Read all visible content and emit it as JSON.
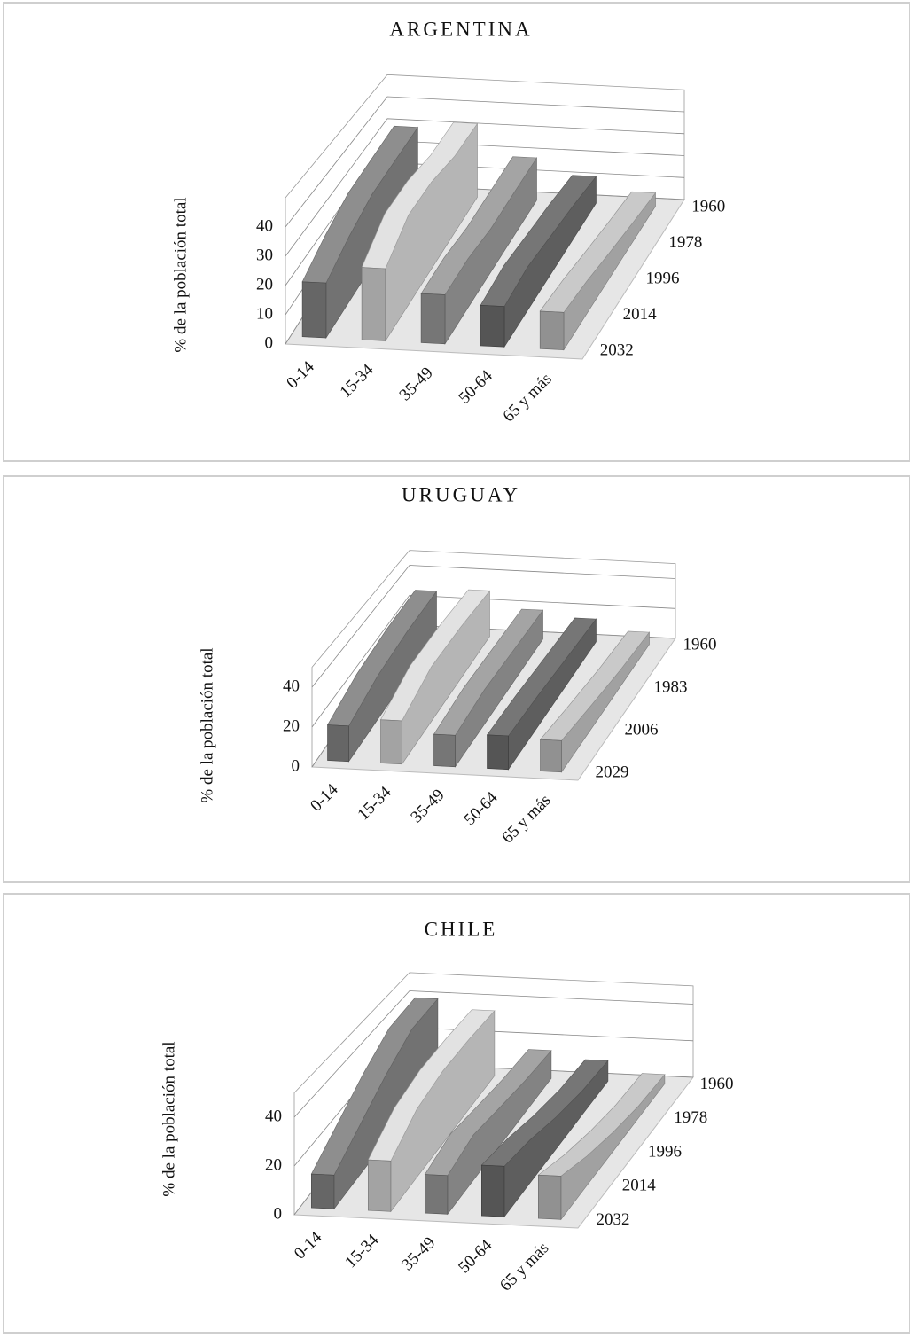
{
  "chart_data": [
    {
      "type": "ribbon3d",
      "title": "ARGENTINA",
      "y_label": "% de la población total",
      "categories": [
        "0-14",
        "15-34",
        "35-49",
        "50-64",
        "65 y más"
      ],
      "x": [
        "1960",
        "1978",
        "1996",
        "2014",
        "2032"
      ],
      "ylim": [
        0,
        50
      ],
      "yticks": [
        0,
        10,
        20,
        30,
        40
      ],
      "grid": true,
      "series": [
        {
          "name": "0-14",
          "color": "#8e8e8e",
          "values": [
            30,
            29,
            28,
            24,
            19
          ]
        },
        {
          "name": "15-34",
          "color": "#e2e2e2",
          "values": [
            33,
            32,
            34,
            33,
            25
          ]
        },
        {
          "name": "35-49",
          "color": "#a4a4a4",
          "values": [
            19,
            18,
            17,
            18,
            17
          ]
        },
        {
          "name": "50-64",
          "color": "#767676",
          "values": [
            12,
            14,
            15,
            16,
            14
          ]
        },
        {
          "name": "65 y más",
          "color": "#c9c9c9",
          "values": [
            6,
            8,
            10,
            12,
            13
          ]
        }
      ]
    },
    {
      "type": "ribbon3d",
      "title": "URUGUAY",
      "y_label": "% de la población total",
      "categories": [
        "0-14",
        "15-34",
        "35-49",
        "50-64",
        "65 y más"
      ],
      "x": [
        "1960",
        "1983",
        "2006",
        "2029"
      ],
      "ylim": [
        0,
        50
      ],
      "yticks": [
        0,
        20,
        40
      ],
      "grid": true,
      "series": [
        {
          "name": "0-14",
          "color": "#8e8e8e",
          "values": [
            28,
            27,
            24,
            18
          ]
        },
        {
          "name": "15-34",
          "color": "#e2e2e2",
          "values": [
            30,
            31,
            30,
            22
          ]
        },
        {
          "name": "35-49",
          "color": "#a4a4a4",
          "values": [
            19,
            19,
            19,
            16
          ]
        },
        {
          "name": "50-64",
          "color": "#767676",
          "values": [
            15,
            16,
            17,
            17
          ]
        },
        {
          "name": "65 y más",
          "color": "#c9c9c9",
          "values": [
            8,
            10,
            13,
            16
          ]
        }
      ]
    },
    {
      "type": "ribbon3d",
      "title": "CHILE",
      "y_label": "% de la población total",
      "categories": [
        "0-14",
        "15-34",
        "35-49",
        "50-64",
        "65 y más"
      ],
      "x": [
        "1960",
        "1978",
        "1996",
        "2014",
        "2032"
      ],
      "ylim": [
        0,
        50
      ],
      "yticks": [
        0,
        20,
        40
      ],
      "grid": true,
      "series": [
        {
          "name": "0-14",
          "color": "#8e8e8e",
          "values": [
            40,
            39,
            31,
            22,
            14
          ]
        },
        {
          "name": "15-34",
          "color": "#e2e2e2",
          "values": [
            35,
            35,
            34,
            30,
            21
          ]
        },
        {
          "name": "35-49",
          "color": "#a4a4a4",
          "values": [
            15,
            16,
            18,
            20,
            16
          ]
        },
        {
          "name": "50-64",
          "color": "#767676",
          "values": [
            11,
            12,
            15,
            19,
            21
          ]
        },
        {
          "name": "65 y más",
          "color": "#c9c9c9",
          "values": [
            5,
            6,
            9,
            13,
            18
          ]
        }
      ]
    }
  ]
}
